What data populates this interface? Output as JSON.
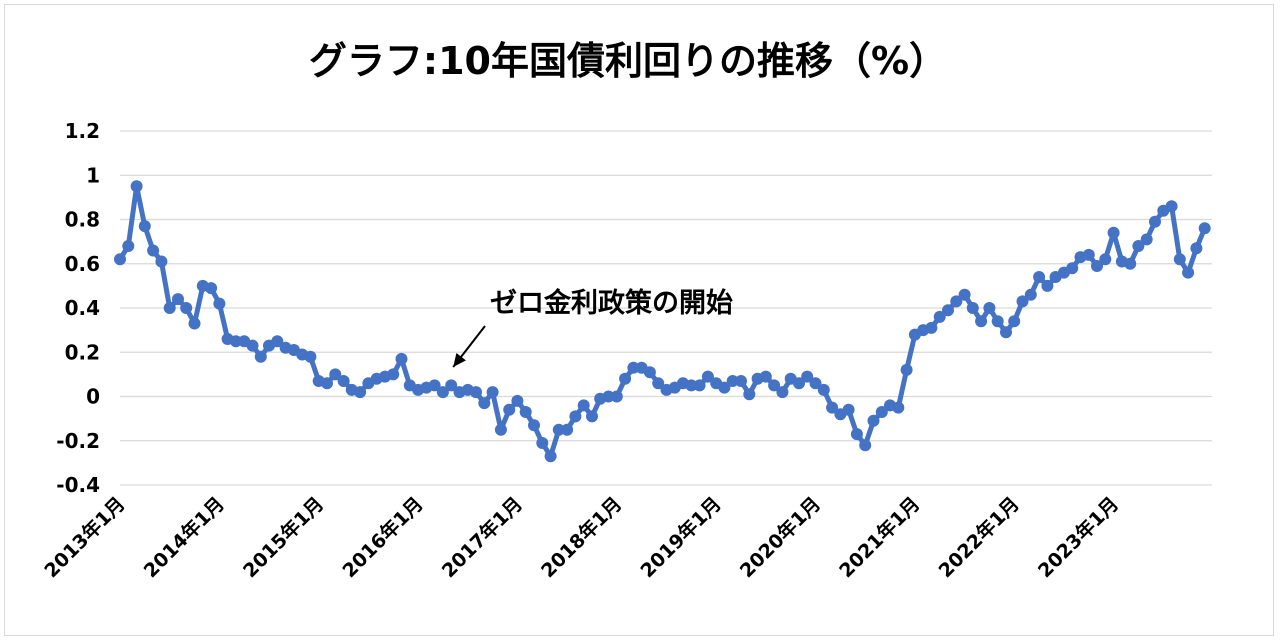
{
  "chart_data": {
    "type": "line",
    "title": "グラフ:10年国債利回りの推移（%）",
    "xlabel": "",
    "ylabel": "",
    "ylim": [
      -0.4,
      1.2
    ],
    "yticks": [
      1.2,
      1,
      0.8,
      0.6,
      0.4,
      0.2,
      0,
      -0.2,
      -0.4
    ],
    "ytick_labels": [
      "1.2",
      "1",
      "0.8",
      "0.6",
      "0.4",
      "0.2",
      "0",
      "-0.2",
      "-0.4"
    ],
    "x_tick_labels": [
      "2013年1月",
      "2014年1月",
      "2015年1月",
      "2016年1月",
      "2017年1月",
      "2018年1月",
      "2019年1月",
      "2020年1月",
      "2021年1月",
      "2022年1月",
      "2023年1月"
    ],
    "grid": true,
    "legend": "none",
    "series_color": "#4472C4",
    "annotation": {
      "text": "ゼロ金利政策の開始",
      "points_to_month_index": 40
    },
    "series": [
      {
        "values": [
          0.62,
          0.68,
          0.95,
          0.77,
          0.66,
          0.61,
          0.4,
          0.44,
          0.4,
          0.33,
          0.5,
          0.49,
          0.42,
          0.26,
          0.25,
          0.25,
          0.23,
          0.18,
          0.23,
          0.25,
          0.22,
          0.21,
          0.19,
          0.18,
          0.07,
          0.06,
          0.1,
          0.07,
          0.03,
          0.02,
          0.06,
          0.08,
          0.09,
          0.1,
          0.17,
          0.05,
          0.03,
          0.04,
          0.05,
          0.02,
          0.05,
          0.02,
          0.03,
          0.02,
          -0.03,
          0.02,
          -0.15,
          -0.06,
          -0.02,
          -0.07,
          -0.13,
          -0.21,
          -0.27,
          -0.15,
          -0.15,
          -0.09,
          -0.04,
          -0.09,
          -0.01,
          0.0,
          0.0,
          0.08,
          0.13,
          0.13,
          0.11,
          0.06,
          0.03,
          0.04,
          0.06,
          0.05,
          0.05,
          0.09,
          0.06,
          0.04,
          0.07,
          0.07,
          0.01,
          0.08,
          0.09,
          0.05,
          0.02,
          0.08,
          0.06,
          0.09,
          0.06,
          0.03,
          -0.05,
          -0.08,
          -0.06,
          -0.17,
          -0.22,
          -0.11,
          -0.07,
          -0.04,
          -0.05,
          0.12,
          0.28,
          0.3,
          0.31,
          0.36,
          0.39,
          0.43,
          0.46,
          0.4,
          0.34,
          0.4,
          0.34,
          0.29,
          0.34,
          0.43,
          0.46,
          0.54,
          0.5,
          0.54,
          0.56,
          0.58,
          0.63,
          0.64,
          0.59,
          0.62,
          0.74,
          0.61,
          0.6,
          0.68,
          0.71,
          0.79,
          0.84,
          0.86,
          0.62,
          0.56,
          0.67,
          0.76
        ]
      }
    ]
  }
}
